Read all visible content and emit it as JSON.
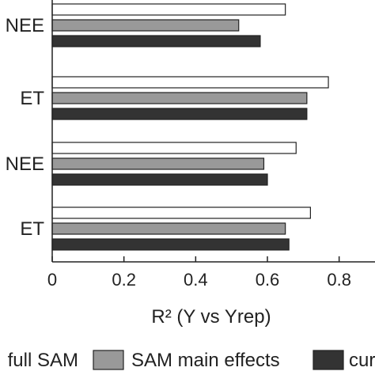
{
  "chart_data": {
    "type": "bar",
    "orientation": "horizontal",
    "categories": [
      "NEE",
      "ET",
      "NEE",
      "ET"
    ],
    "series": [
      {
        "name": "full SAM",
        "color": "#ffffff",
        "values": [
          0.65,
          0.77,
          0.68,
          0.72
        ]
      },
      {
        "name": "SAM main effects",
        "color": "#999999",
        "values": [
          0.52,
          0.71,
          0.59,
          0.65
        ]
      },
      {
        "name": "cur",
        "color": "#333333",
        "values": [
          0.58,
          0.71,
          0.6,
          0.66
        ]
      }
    ],
    "xlabel": "R² (Y vs Yrep)",
    "ylabel": "",
    "xlim": [
      0,
      0.9
    ],
    "xticks": [
      0,
      0.2,
      0.4,
      0.6,
      0.8
    ],
    "xtick_labels": [
      "0",
      "0.2",
      "0.4",
      "0.6",
      "0.8"
    ],
    "grid": false,
    "legend_position": "bottom"
  }
}
